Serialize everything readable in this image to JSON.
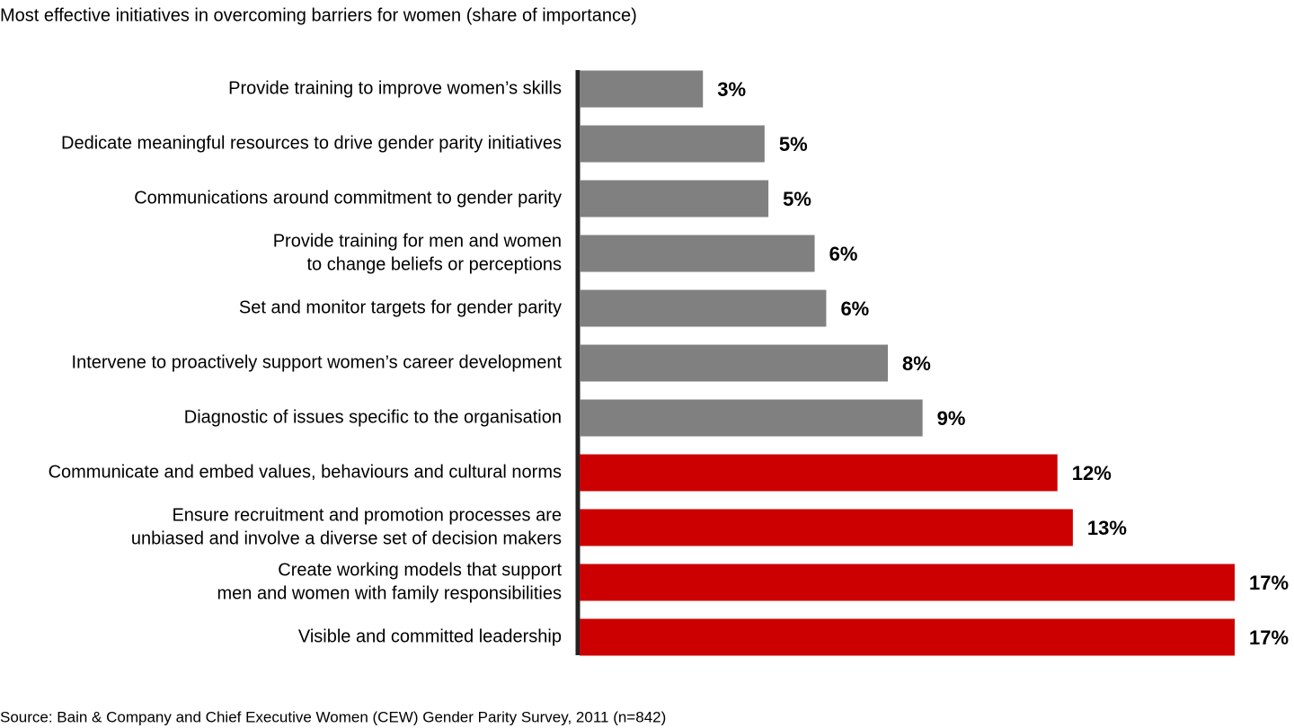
{
  "chart_data": {
    "type": "bar",
    "orientation": "horizontal",
    "title": "Most effective initiatives in overcoming barriers for women (share of importance)",
    "categories": [
      [
        "Provide training to improve women’s skills"
      ],
      [
        "Dedicate meaningful resources to drive gender parity initiatives"
      ],
      [
        "Communications around commitment to gender parity"
      ],
      [
        "Provide training for men and women",
        "to change beliefs or perceptions"
      ],
      [
        "Set and monitor targets for gender parity"
      ],
      [
        "Intervene to proactively support women’s career development"
      ],
      [
        "Diagnostic of issues specific to the organisation"
      ],
      [
        "Communicate and embed values, behaviours and cultural norms"
      ],
      [
        "Ensure recruitment and promotion processes are",
        "unbiased and involve a diverse set of decision makers"
      ],
      [
        "Create working models that support",
        "men and women with family responsibilities"
      ],
      [
        "Visible and committed leadership"
      ]
    ],
    "values": [
      3.2,
      4.8,
      4.9,
      6.1,
      6.4,
      8.0,
      8.9,
      12.4,
      12.8,
      17.0,
      17.0
    ],
    "value_labels": [
      "3%",
      "5%",
      "5%",
      "6%",
      "6%",
      "8%",
      "9%",
      "12%",
      "13%",
      "17%",
      "17%"
    ],
    "colors": [
      "#808080",
      "#808080",
      "#808080",
      "#808080",
      "#808080",
      "#808080",
      "#808080",
      "#cc0000",
      "#cc0000",
      "#cc0000",
      "#cc0000"
    ],
    "xlim": [
      0,
      17
    ],
    "source": "Source: Bain & Company and Chief Executive Women (CEW) Gender Parity Survey, 2011 (n=842)"
  }
}
